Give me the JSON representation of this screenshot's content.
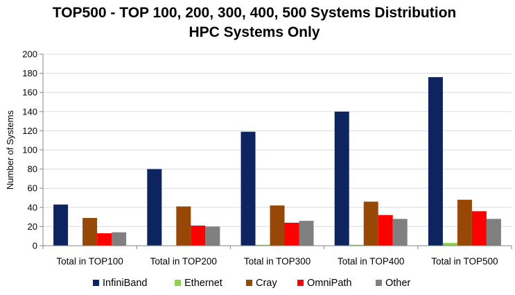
{
  "chart_data": {
    "type": "bar",
    "title": "TOP500 - TOP 100, 200, 300, 400, 500 Systems Distribution",
    "subtitle": "HPC Systems Only",
    "xlabel": "",
    "ylabel": "Number of Systems",
    "ylim": [
      0,
      200
    ],
    "yticks": [
      "0",
      "20",
      "40",
      "60",
      "80",
      "100",
      "120",
      "140",
      "160",
      "180",
      "200"
    ],
    "grid": true,
    "legend_position": "bottom",
    "categories": [
      "Total in TOP100",
      "Total in TOP200",
      "Total in TOP300",
      "Total in TOP400",
      "Total in TOP500"
    ],
    "series": [
      {
        "name": "InfiniBand",
        "color": "#0e2460",
        "values": [
          43,
          80,
          119,
          140,
          176
        ]
      },
      {
        "name": "Ethernet",
        "color": "#92d050",
        "values": [
          0,
          0,
          1,
          1,
          3
        ]
      },
      {
        "name": "Cray",
        "color": "#974706",
        "values": [
          29,
          41,
          42,
          46,
          48
        ]
      },
      {
        "name": "OmniPath",
        "color": "#ff0000",
        "values": [
          13,
          21,
          24,
          32,
          36
        ]
      },
      {
        "name": "Other",
        "color": "#808080",
        "values": [
          14,
          20,
          26,
          28,
          28
        ]
      }
    ]
  }
}
